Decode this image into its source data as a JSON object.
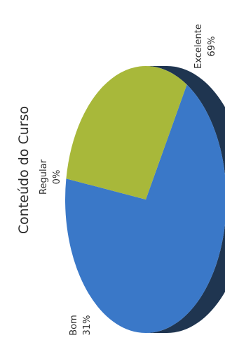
{
  "chart_data": {
    "type": "pie",
    "title": "Conteúdo do Curso",
    "slices": [
      {
        "name": "Excelente",
        "value": 69,
        "label": "69%",
        "color": "#3a78c8"
      },
      {
        "name": "Bom",
        "value": 31,
        "label": "31%",
        "color": "#a8b83a"
      },
      {
        "name": "Regular",
        "value": 0,
        "label": "0%",
        "color": "#8a8a8a"
      }
    ]
  }
}
